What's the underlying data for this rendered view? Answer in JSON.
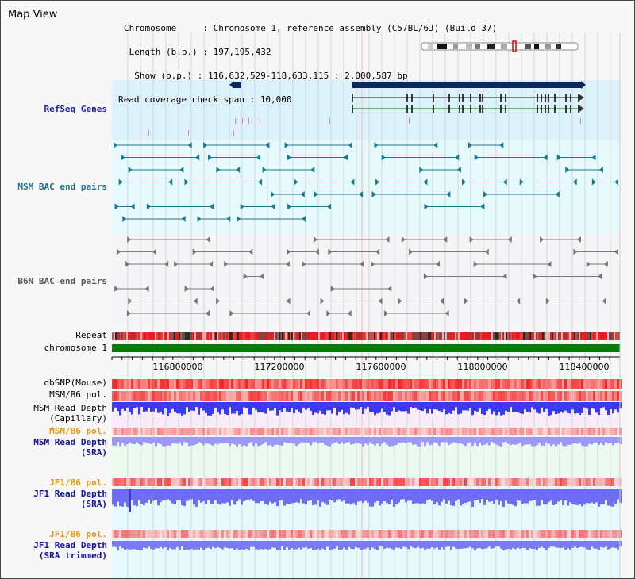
{
  "window": {
    "title": "Map View"
  },
  "info": {
    "chromosome_label": "Chromosome     : ",
    "chromosome_value": "Chromosome 1, reference assembly (C57BL/6J) (Build 37)",
    "length_label": " Length (b.p.) : ",
    "length_value": "197,195,432",
    "show_label": "  Show (b.p.) : ",
    "show_value": "116,632,529-118,633,115 : 2,000,587 bp",
    "span_label": "Read coverage check span : ",
    "span_value": "10,000"
  },
  "tracks": {
    "refseq": "RefSeq Genes",
    "msm_bac": "MSM BAC end pairs",
    "b6n_bac": "B6N BAC end pairs",
    "repeat": "Repeat",
    "chromosome": "chromosome 1",
    "dbsnp": "dbSNP(Mouse)",
    "msm_pol": "MSM/B6 pol.",
    "msm_depth_cap_1": "MSM Read Depth",
    "msm_depth_cap_2": "(Capillary)",
    "msm_pol_2": "MSM/B6 pol.",
    "msm_depth_sra_1": "MSM Read Depth",
    "msm_depth_sra_2": "(SRA)",
    "jf1_pol": "JF1/B6 pol.",
    "jf1_depth_sra_1": "JF1 Read Depth",
    "jf1_depth_sra_2": "(SRA)",
    "jf1_pol_2": "JF1/B6 pol.",
    "jf1_depth_trim_1": "JF1 Read Depth",
    "jf1_depth_trim_2": "(SRA trimmed)"
  },
  "axis": {
    "ticks": [
      "116800000",
      "117200000",
      "117600000",
      "118000000",
      "118400000"
    ]
  },
  "colors": {
    "refseq_bg": "#dcf2fb",
    "msm_bg": "#e6fafd",
    "gene_fill": "#0a2a5e",
    "repeat_red": "#e02020",
    "chromosome_green": "#0a7a0a",
    "depth_blue": "#3a3af0",
    "depth_light": "#9a9af6"
  }
}
